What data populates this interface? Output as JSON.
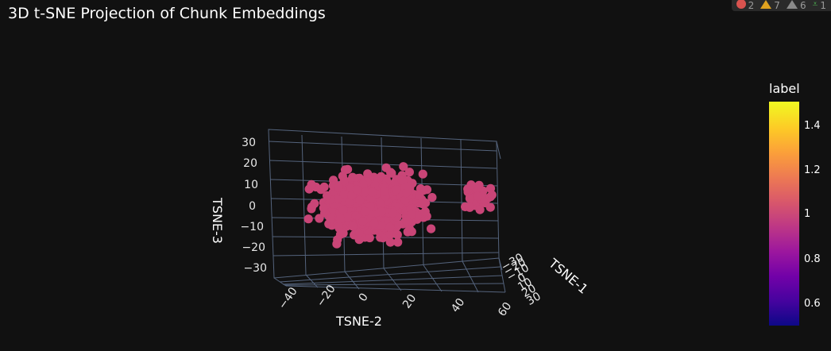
{
  "status_bar": {
    "errors": "2",
    "warnings": "7",
    "infos": "6",
    "passed": "1"
  },
  "chart_data": {
    "type": "scatter",
    "title": "3D t-SNE Projection of Chunk Embeddings",
    "axes": {
      "x": {
        "label": "TSNE-1",
        "range": [
          -30,
          30
        ],
        "ticks": [
          "−30",
          "−20",
          "−10",
          "0",
          "10",
          "20",
          "30"
        ]
      },
      "y": {
        "label": "TSNE-2",
        "range": [
          -45,
          60
        ],
        "ticks": [
          "−40",
          "−20",
          "0",
          "20",
          "40",
          "60"
        ]
      },
      "z": {
        "label": "TSNE-3",
        "range": [
          -33,
          33
        ],
        "ticks": [
          "30",
          "20",
          "10",
          "0",
          "−10",
          "−20",
          "−30"
        ]
      }
    },
    "colorbar": {
      "title": "label",
      "range": [
        0.5,
        1.5
      ],
      "ticks": [
        "1.4",
        "1.2",
        "1",
        "0.8",
        "0.6"
      ],
      "colorscale": "plasma"
    },
    "point_color": "#c94577",
    "series": [
      {
        "marker_value": 1,
        "point_count": 620
      }
    ],
    "grid": true
  }
}
